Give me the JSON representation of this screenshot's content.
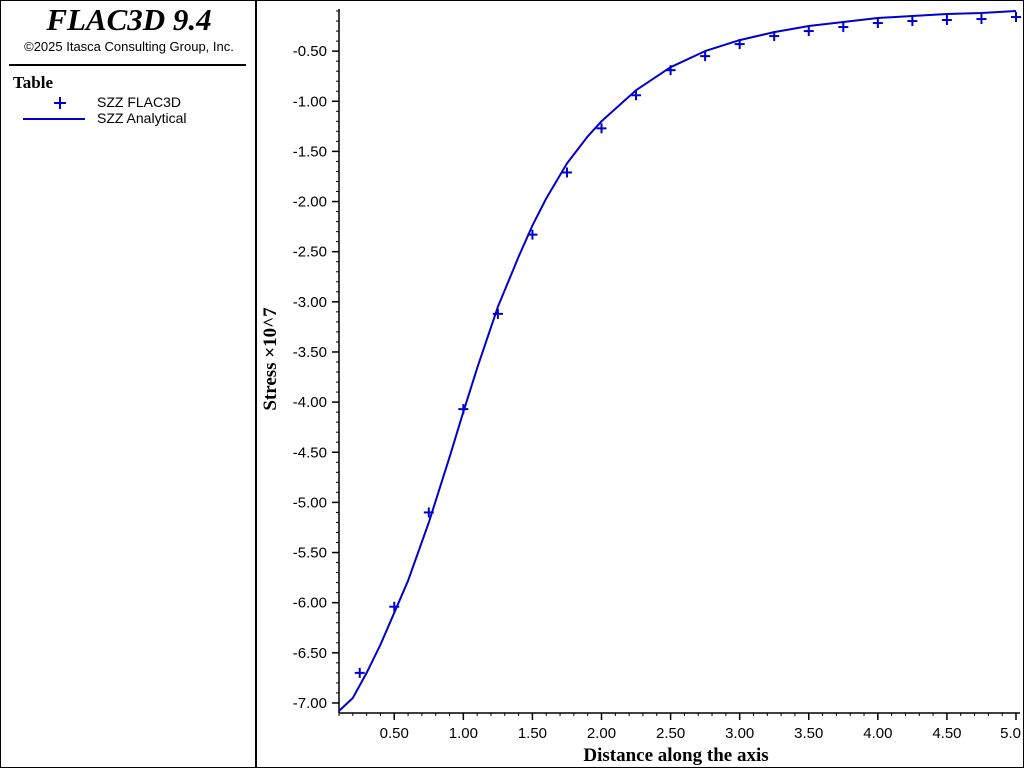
{
  "header": {
    "app_title": "FLAC3D 9.4",
    "copyright": "©2025 Itasca Consulting Group, Inc."
  },
  "legend": {
    "title": "Table",
    "entries": [
      {
        "label": "SZZ FLAC3D",
        "symbol": "plus-marker-icon",
        "color": "#0000cc"
      },
      {
        "label": "SZZ Analytical",
        "symbol": "line-icon",
        "color": "#0000cc"
      }
    ]
  },
  "chart_data": {
    "type": "line",
    "xlabel": "Distance along the axis",
    "ylabel": "Stress ×10^7",
    "xlim": [
      0.1,
      5.0
    ],
    "ylim": [
      -7.1,
      -0.08
    ],
    "x_ticks": [
      0.5,
      1.0,
      1.5,
      2.0,
      2.5,
      3.0,
      3.5,
      4.0,
      4.5,
      5.0
    ],
    "x_tick_labels": [
      "0.50",
      "1.00",
      "1.50",
      "2.00",
      "2.50",
      "3.00",
      "3.50",
      "4.00",
      "4.50",
      "5.0"
    ],
    "y_ticks": [
      -7.0,
      -6.5,
      -6.0,
      -5.5,
      -5.0,
      -4.5,
      -4.0,
      -3.5,
      -3.0,
      -2.5,
      -2.0,
      -1.5,
      -1.0,
      -0.5
    ],
    "y_tick_labels": [
      "-7.00",
      "-6.50",
      "-6.00",
      "-5.50",
      "-5.00",
      "-4.50",
      "-4.00",
      "-3.50",
      "-3.00",
      "-2.50",
      "-2.00",
      "-1.50",
      "-1.00",
      "-0.50"
    ],
    "grid": false,
    "legend_position": "left panel",
    "colors": {
      "series": "#0000cc",
      "axis": "#000000"
    },
    "series": [
      {
        "name": "SZZ FLAC3D",
        "style": "markers",
        "x": [
          0.25,
          0.5,
          0.75,
          1.0,
          1.25,
          1.5,
          1.75,
          2.0,
          2.25,
          2.5,
          2.75,
          3.0,
          3.25,
          3.5,
          3.75,
          4.0,
          4.25,
          4.5,
          4.75,
          5.0
        ],
        "y": [
          -6.7,
          -6.04,
          -5.1,
          -4.07,
          -3.12,
          -2.33,
          -1.71,
          -1.27,
          -0.94,
          -0.69,
          -0.55,
          -0.43,
          -0.35,
          -0.3,
          -0.26,
          -0.22,
          -0.2,
          -0.19,
          -0.18,
          -0.16
        ]
      },
      {
        "name": "SZZ Analytical",
        "style": "line",
        "x": [
          0.1,
          0.2,
          0.3,
          0.4,
          0.5,
          0.6,
          0.75,
          0.9,
          1.0,
          1.1,
          1.25,
          1.4,
          1.5,
          1.6,
          1.75,
          1.9,
          2.0,
          2.25,
          2.5,
          2.75,
          3.0,
          3.25,
          3.5,
          3.75,
          4.0,
          4.25,
          4.5,
          4.75,
          5.0
        ],
        "y": [
          -7.08,
          -6.95,
          -6.7,
          -6.42,
          -6.1,
          -5.78,
          -5.2,
          -4.55,
          -4.1,
          -3.66,
          -3.05,
          -2.55,
          -2.24,
          -1.97,
          -1.62,
          -1.35,
          -1.2,
          -0.89,
          -0.66,
          -0.5,
          -0.39,
          -0.31,
          -0.25,
          -0.21,
          -0.17,
          -0.15,
          -0.13,
          -0.12,
          -0.1
        ]
      }
    ]
  }
}
